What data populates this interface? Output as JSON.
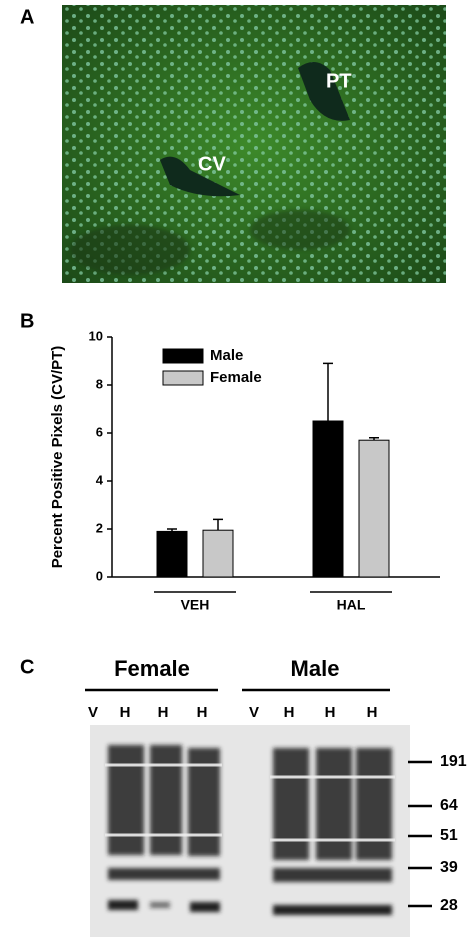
{
  "panel_labels": [
    "A",
    "B",
    "C"
  ],
  "micrograph": {
    "labels": [
      "PT",
      "CV"
    ]
  },
  "chart_data": {
    "type": "bar",
    "ylabel": "Percent Positive Pixels (CV/PT)",
    "categories": [
      "VEH",
      "HAL"
    ],
    "series": [
      {
        "name": "Male",
        "color": "#000000",
        "values": [
          1.9,
          6.5
        ],
        "errors": [
          0.1,
          2.4
        ]
      },
      {
        "name": "Female",
        "color": "#c8c8c8",
        "values": [
          1.95,
          5.7
        ],
        "errors": [
          0.45,
          0.1
        ]
      }
    ],
    "ylim": [
      0,
      10
    ],
    "yticks": [
      0,
      2,
      4,
      6,
      8,
      10
    ],
    "legend": "upper left"
  },
  "blot": {
    "groups": [
      "Female",
      "Male"
    ],
    "lanes": [
      "V",
      "H",
      "H",
      "H",
      "V",
      "H",
      "H",
      "H"
    ],
    "markers": [
      "191",
      "64",
      "51",
      "39",
      "28"
    ]
  }
}
